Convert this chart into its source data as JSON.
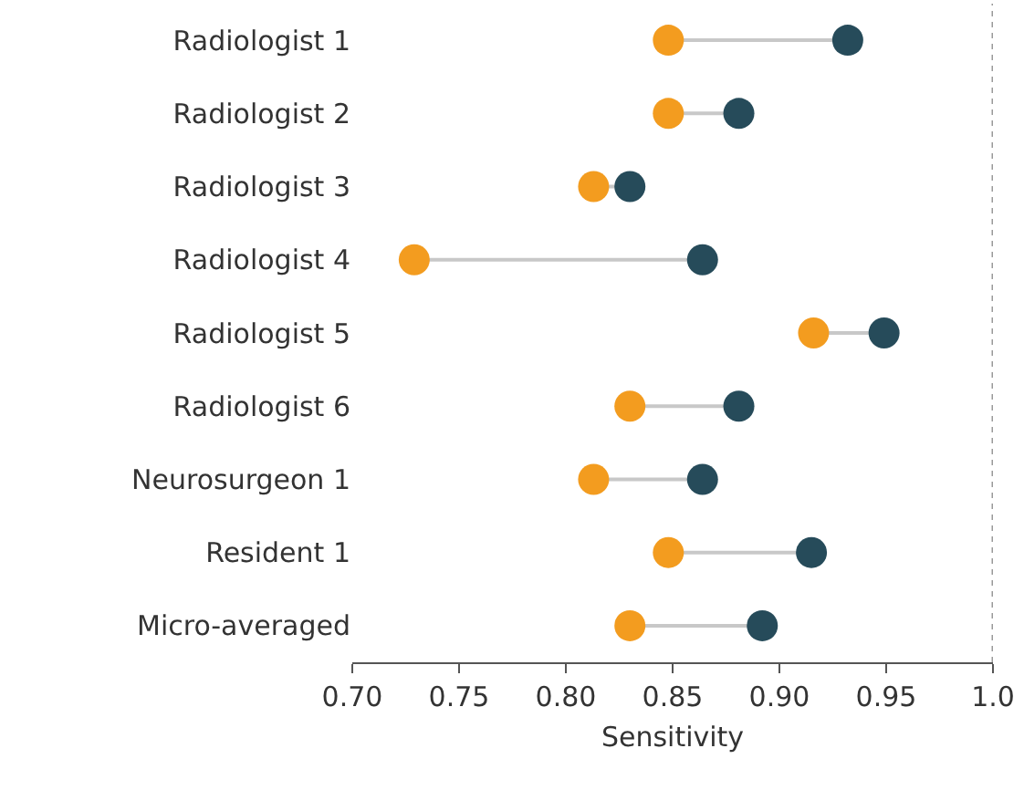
{
  "chart_data": {
    "type": "scatter",
    "orientation": "horizontal",
    "xlabel": "Sensitivity",
    "categories": [
      "Radiologist 1",
      "Radiologist 2",
      "Radiologist 3",
      "Radiologist 4",
      "Radiologist 5",
      "Radiologist 6",
      "Neurosurgeon 1",
      "Resident 1",
      "Micro-averaged"
    ],
    "series": [
      {
        "color": "#f39c1f",
        "values": [
          0.848,
          0.848,
          0.813,
          0.729,
          0.916,
          0.83,
          0.813,
          0.848,
          0.83
        ]
      },
      {
        "color": "#264b5a",
        "values": [
          0.932,
          0.881,
          0.83,
          0.864,
          0.949,
          0.881,
          0.864,
          0.915,
          0.892
        ]
      }
    ],
    "xlim": [
      0.7,
      1.0
    ],
    "xticks": [
      {
        "value": 0.7,
        "label": "0.70"
      },
      {
        "value": 0.75,
        "label": "0.75"
      },
      {
        "value": 0.8,
        "label": "0.80"
      },
      {
        "value": 0.85,
        "label": "0.85"
      },
      {
        "value": 0.9,
        "label": "0.90"
      },
      {
        "value": 0.95,
        "label": "0.95"
      },
      {
        "value": 1.0,
        "label": "1.0"
      }
    ],
    "ref_lines": [
      {
        "axis": "x",
        "value": 1.0,
        "color": "#999999",
        "line_style": "dotted"
      }
    ],
    "marker": "circle"
  }
}
